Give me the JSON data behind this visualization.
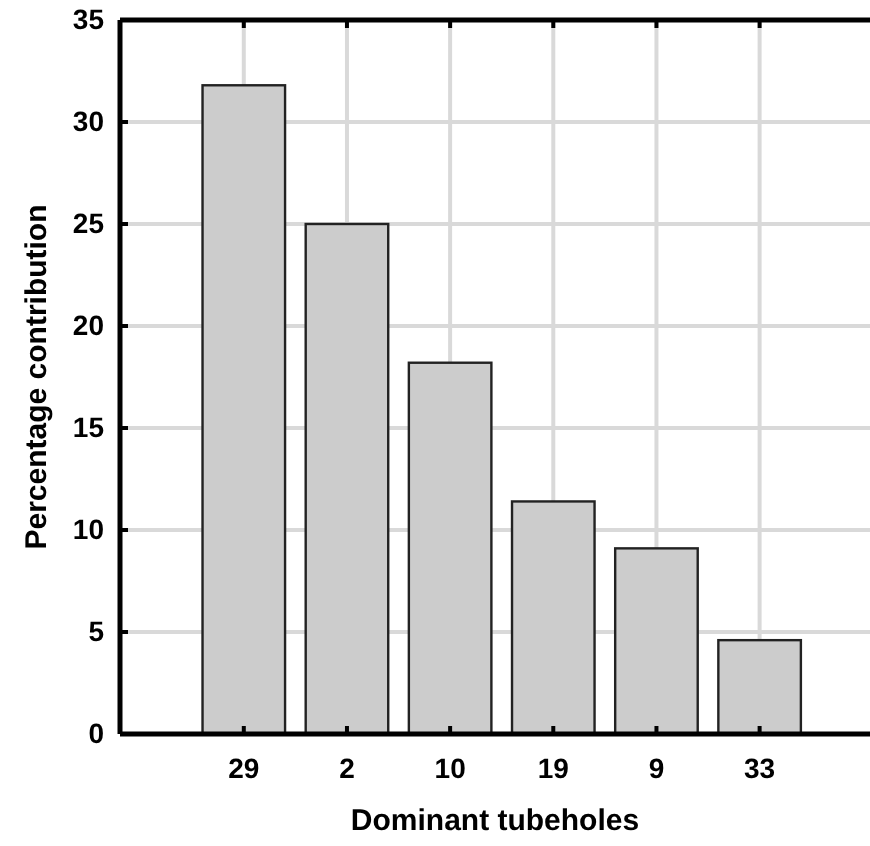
{
  "chart_data": {
    "type": "bar",
    "xlabel": "Dominant tubeholes",
    "ylabel": "Percentage contribution",
    "categories": [
      "29",
      "2",
      "10",
      "19",
      "9",
      "33"
    ],
    "values": [
      31.8,
      25.0,
      18.2,
      11.4,
      9.1,
      4.6
    ],
    "color": "#cccccc",
    "ylim": [
      0,
      35
    ],
    "yticks": [
      0,
      5,
      10,
      15,
      20,
      25,
      30,
      35
    ],
    "grid": true
  }
}
